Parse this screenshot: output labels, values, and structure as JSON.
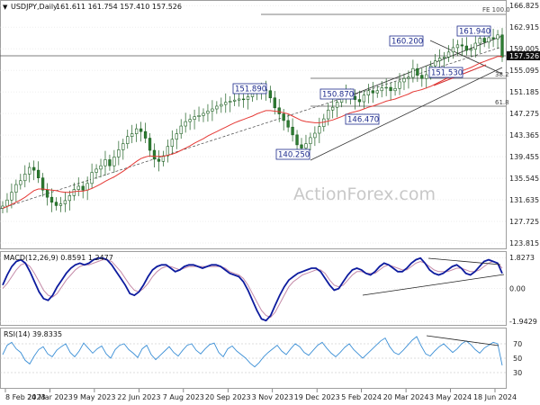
{
  "header": {
    "symbol": "USDJPY,Daily",
    "ohlc": "161.611 161.754 157.410 157.526",
    "price_tag": "157.526"
  },
  "watermark": "ActionForex.com",
  "colors": {
    "up_candle": "#2e7d32",
    "down_candle": "#2e7d32",
    "candle_line": "#1b5e20",
    "ema": "#e53935",
    "channel": "#333333",
    "label": "#1c2a8c",
    "macd": "#0d1b9e",
    "signal": "#c48aa8",
    "rsi": "#3b8fd6",
    "grid": "#dcdcdc"
  },
  "chart_data": [
    {
      "type": "candlestick",
      "title": "USDJPY,Daily",
      "y_ticks": [
        "166.825",
        "162.915",
        "159.005",
        "155.095",
        "151.185",
        "147.275",
        "143.365",
        "139.455",
        "135.545",
        "131.635",
        "127.725",
        "123.815"
      ],
      "ylim": [
        123.0,
        167.5
      ],
      "x_ticks": [
        "8 Feb 2023",
        "24 Mar 2023",
        "9 May 2023",
        "22 Jun 2023",
        "7 Aug 2023",
        "20 Sep 2023",
        "3 Nov 2023",
        "19 Dec 2023",
        "5 Feb 2024",
        "20 Mar 2024",
        "3 May 2024",
        "18 Jun 2024"
      ],
      "series": [
        {
          "kind": "close",
          "values": [
            130.5,
            131.6,
            133.0,
            134.4,
            135.1,
            136.3,
            137.5,
            137.0,
            135.6,
            133.4,
            132.1,
            131.2,
            130.6,
            130.9,
            131.5,
            132.4,
            133.5,
            134.1,
            133.4,
            134.6,
            136.6,
            137.2,
            137.8,
            138.9,
            137.8,
            139.4,
            140.7,
            141.8,
            143.1,
            143.6,
            144.5,
            144.0,
            142.8,
            140.6,
            139.0,
            138.6,
            139.6,
            141.3,
            142.6,
            143.6,
            145.0,
            145.8,
            146.2,
            146.7,
            146.9,
            147.3,
            147.7,
            148.1,
            148.6,
            148.9,
            149.3,
            149.5,
            149.7,
            149.9,
            149.8,
            150.3,
            150.9,
            151.3,
            151.6,
            151.4,
            150.1,
            148.3,
            147.2,
            146.0,
            144.8,
            143.4,
            141.6,
            141.0,
            141.8,
            142.9,
            143.7,
            144.9,
            146.3,
            147.9,
            148.4,
            149.3,
            150.3,
            150.9,
            150.4,
            149.8,
            149.4,
            150.6,
            151.4,
            151.0,
            151.4,
            151.9,
            152.0,
            151.4,
            151.8,
            153.0,
            153.6,
            153.8,
            155.4,
            154.2,
            153.6,
            154.3,
            155.9,
            156.8,
            157.3,
            157.5,
            158.4,
            159.2,
            159.7,
            159.5,
            158.7,
            158.9,
            160.0,
            160.9,
            160.2,
            161.0,
            160.8,
            161.5,
            157.5
          ]
        },
        {
          "kind": "ema",
          "values": [
            130.1,
            130.4,
            130.8,
            131.2,
            131.6,
            132.1,
            132.7,
            133.3,
            133.6,
            133.6,
            133.5,
            133.4,
            133.3,
            133.1,
            133.0,
            133.0,
            133.1,
            133.2,
            133.2,
            133.4,
            133.7,
            134.1,
            134.5,
            135.0,
            135.4,
            135.8,
            136.3,
            136.8,
            137.4,
            138.0,
            138.6,
            139.1,
            139.4,
            139.6,
            139.5,
            139.5,
            139.5,
            139.7,
            139.9,
            140.2,
            140.6,
            141.0,
            141.4,
            141.9,
            142.3,
            142.7,
            143.2,
            143.6,
            144.0,
            144.4,
            144.8,
            145.2,
            145.6,
            145.9,
            146.2,
            146.5,
            146.8,
            147.2,
            147.5,
            147.8,
            147.8,
            147.7,
            147.6,
            147.4,
            147.2,
            146.8,
            146.4,
            146.0,
            145.8,
            145.7,
            145.6,
            145.6,
            145.7,
            145.9,
            146.1,
            146.4,
            146.7,
            147.1,
            147.4,
            147.6,
            147.8,
            148.1,
            148.4,
            148.6,
            148.9,
            149.2,
            149.5,
            149.7,
            149.9,
            150.2,
            150.5,
            150.8,
            151.2,
            151.4,
            151.6,
            151.9,
            152.2,
            152.6,
            153.0,
            153.4,
            153.8,
            154.2,
            154.6,
            155.0,
            155.3,
            155.6,
            156.0,
            156.4,
            156.7,
            157.0,
            157.3,
            157.6,
            157.6
          ]
        }
      ],
      "annotations": [
        "151.890",
        "140.250",
        "150.870",
        "146.470",
        "160.200",
        "151.530",
        "161.940"
      ],
      "fib_labels": [
        "FE 100.0",
        "38.2",
        "61.8"
      ]
    },
    {
      "type": "line",
      "title": "MACD(12,26,9) 0.8591 1.2477",
      "y_ticks": [
        "1.8273",
        "0.00",
        "-1.9429"
      ],
      "ylim": [
        -2.1,
        2.0
      ],
      "series": [
        {
          "name": "MACD",
          "values": [
            0.2,
            0.8,
            1.3,
            1.6,
            1.7,
            1.5,
            1.0,
            0.4,
            -0.2,
            -0.6,
            -0.7,
            -0.4,
            0.1,
            0.5,
            0.9,
            1.2,
            1.4,
            1.5,
            1.4,
            1.5,
            1.7,
            1.8,
            1.8,
            1.7,
            1.4,
            1.0,
            0.6,
            0.2,
            -0.3,
            -0.4,
            -0.2,
            0.2,
            0.7,
            1.1,
            1.3,
            1.4,
            1.4,
            1.2,
            1.0,
            1.1,
            1.3,
            1.4,
            1.4,
            1.3,
            1.2,
            1.3,
            1.4,
            1.4,
            1.3,
            1.1,
            0.9,
            0.8,
            0.7,
            0.4,
            -0.1,
            -0.7,
            -1.3,
            -1.8,
            -1.9,
            -1.6,
            -1.0,
            -0.4,
            0.1,
            0.5,
            0.7,
            0.9,
            1.0,
            1.1,
            1.2,
            1.2,
            1.0,
            0.6,
            0.2,
            -0.1,
            0.0,
            0.4,
            0.8,
            1.1,
            1.2,
            1.1,
            0.9,
            0.8,
            1.0,
            1.3,
            1.5,
            1.4,
            1.2,
            1.0,
            1.0,
            1.2,
            1.5,
            1.7,
            1.8,
            1.5,
            1.1,
            0.9,
            0.8,
            0.9,
            1.1,
            1.3,
            1.4,
            1.2,
            0.9,
            0.8,
            1.0,
            1.3,
            1.6,
            1.7,
            1.6,
            1.5,
            0.9
          ]
        },
        {
          "name": "Signal",
          "values": [
            0.0,
            0.3,
            0.7,
            1.1,
            1.4,
            1.5,
            1.3,
            0.9,
            0.4,
            -0.1,
            -0.4,
            -0.5,
            -0.3,
            0.1,
            0.5,
            0.8,
            1.1,
            1.3,
            1.4,
            1.4,
            1.5,
            1.6,
            1.7,
            1.7,
            1.6,
            1.3,
            1.0,
            0.6,
            0.2,
            -0.1,
            -0.2,
            0.0,
            0.3,
            0.7,
            1.0,
            1.2,
            1.3,
            1.3,
            1.2,
            1.1,
            1.2,
            1.3,
            1.3,
            1.3,
            1.3,
            1.3,
            1.3,
            1.3,
            1.3,
            1.2,
            1.0,
            0.9,
            0.8,
            0.6,
            0.2,
            -0.3,
            -0.8,
            -1.3,
            -1.6,
            -1.7,
            -1.4,
            -0.9,
            -0.4,
            0.1,
            0.4,
            0.6,
            0.8,
            0.9,
            1.0,
            1.1,
            1.1,
            0.9,
            0.5,
            0.2,
            0.1,
            0.2,
            0.5,
            0.8,
            1.0,
            1.0,
            0.9,
            0.9,
            0.9,
            1.1,
            1.3,
            1.4,
            1.3,
            1.2,
            1.1,
            1.1,
            1.3,
            1.5,
            1.6,
            1.5,
            1.3,
            1.1,
            1.0,
            1.0,
            1.0,
            1.1,
            1.2,
            1.2,
            1.1,
            1.0,
            1.0,
            1.1,
            1.3,
            1.5,
            1.6,
            1.5,
            1.2
          ]
        }
      ]
    },
    {
      "type": "line",
      "title": "RSI(14) 39.8335",
      "y_ticks": [
        "70",
        "50",
        "30"
      ],
      "ylim": [
        10,
        90
      ],
      "series": [
        {
          "name": "RSI",
          "values": [
            55,
            68,
            72,
            63,
            58,
            47,
            42,
            53,
            62,
            66,
            56,
            52,
            61,
            66,
            70,
            58,
            52,
            60,
            71,
            64,
            57,
            63,
            67,
            56,
            50,
            62,
            68,
            70,
            62,
            57,
            51,
            63,
            68,
            55,
            48,
            54,
            60,
            66,
            58,
            53,
            61,
            68,
            70,
            61,
            56,
            63,
            69,
            71,
            58,
            52,
            63,
            67,
            60,
            55,
            50,
            43,
            38,
            44,
            52,
            58,
            63,
            68,
            60,
            55,
            63,
            70,
            66,
            58,
            54,
            61,
            68,
            72,
            64,
            57,
            52,
            58,
            65,
            70,
            62,
            56,
            50,
            56,
            62,
            68,
            74,
            78,
            66,
            58,
            55,
            61,
            68,
            75,
            80,
            67,
            56,
            53,
            60,
            66,
            70,
            64,
            58,
            63,
            70,
            74,
            69,
            62,
            57,
            64,
            68,
            72,
            70,
            40
          ]
        }
      ]
    }
  ]
}
